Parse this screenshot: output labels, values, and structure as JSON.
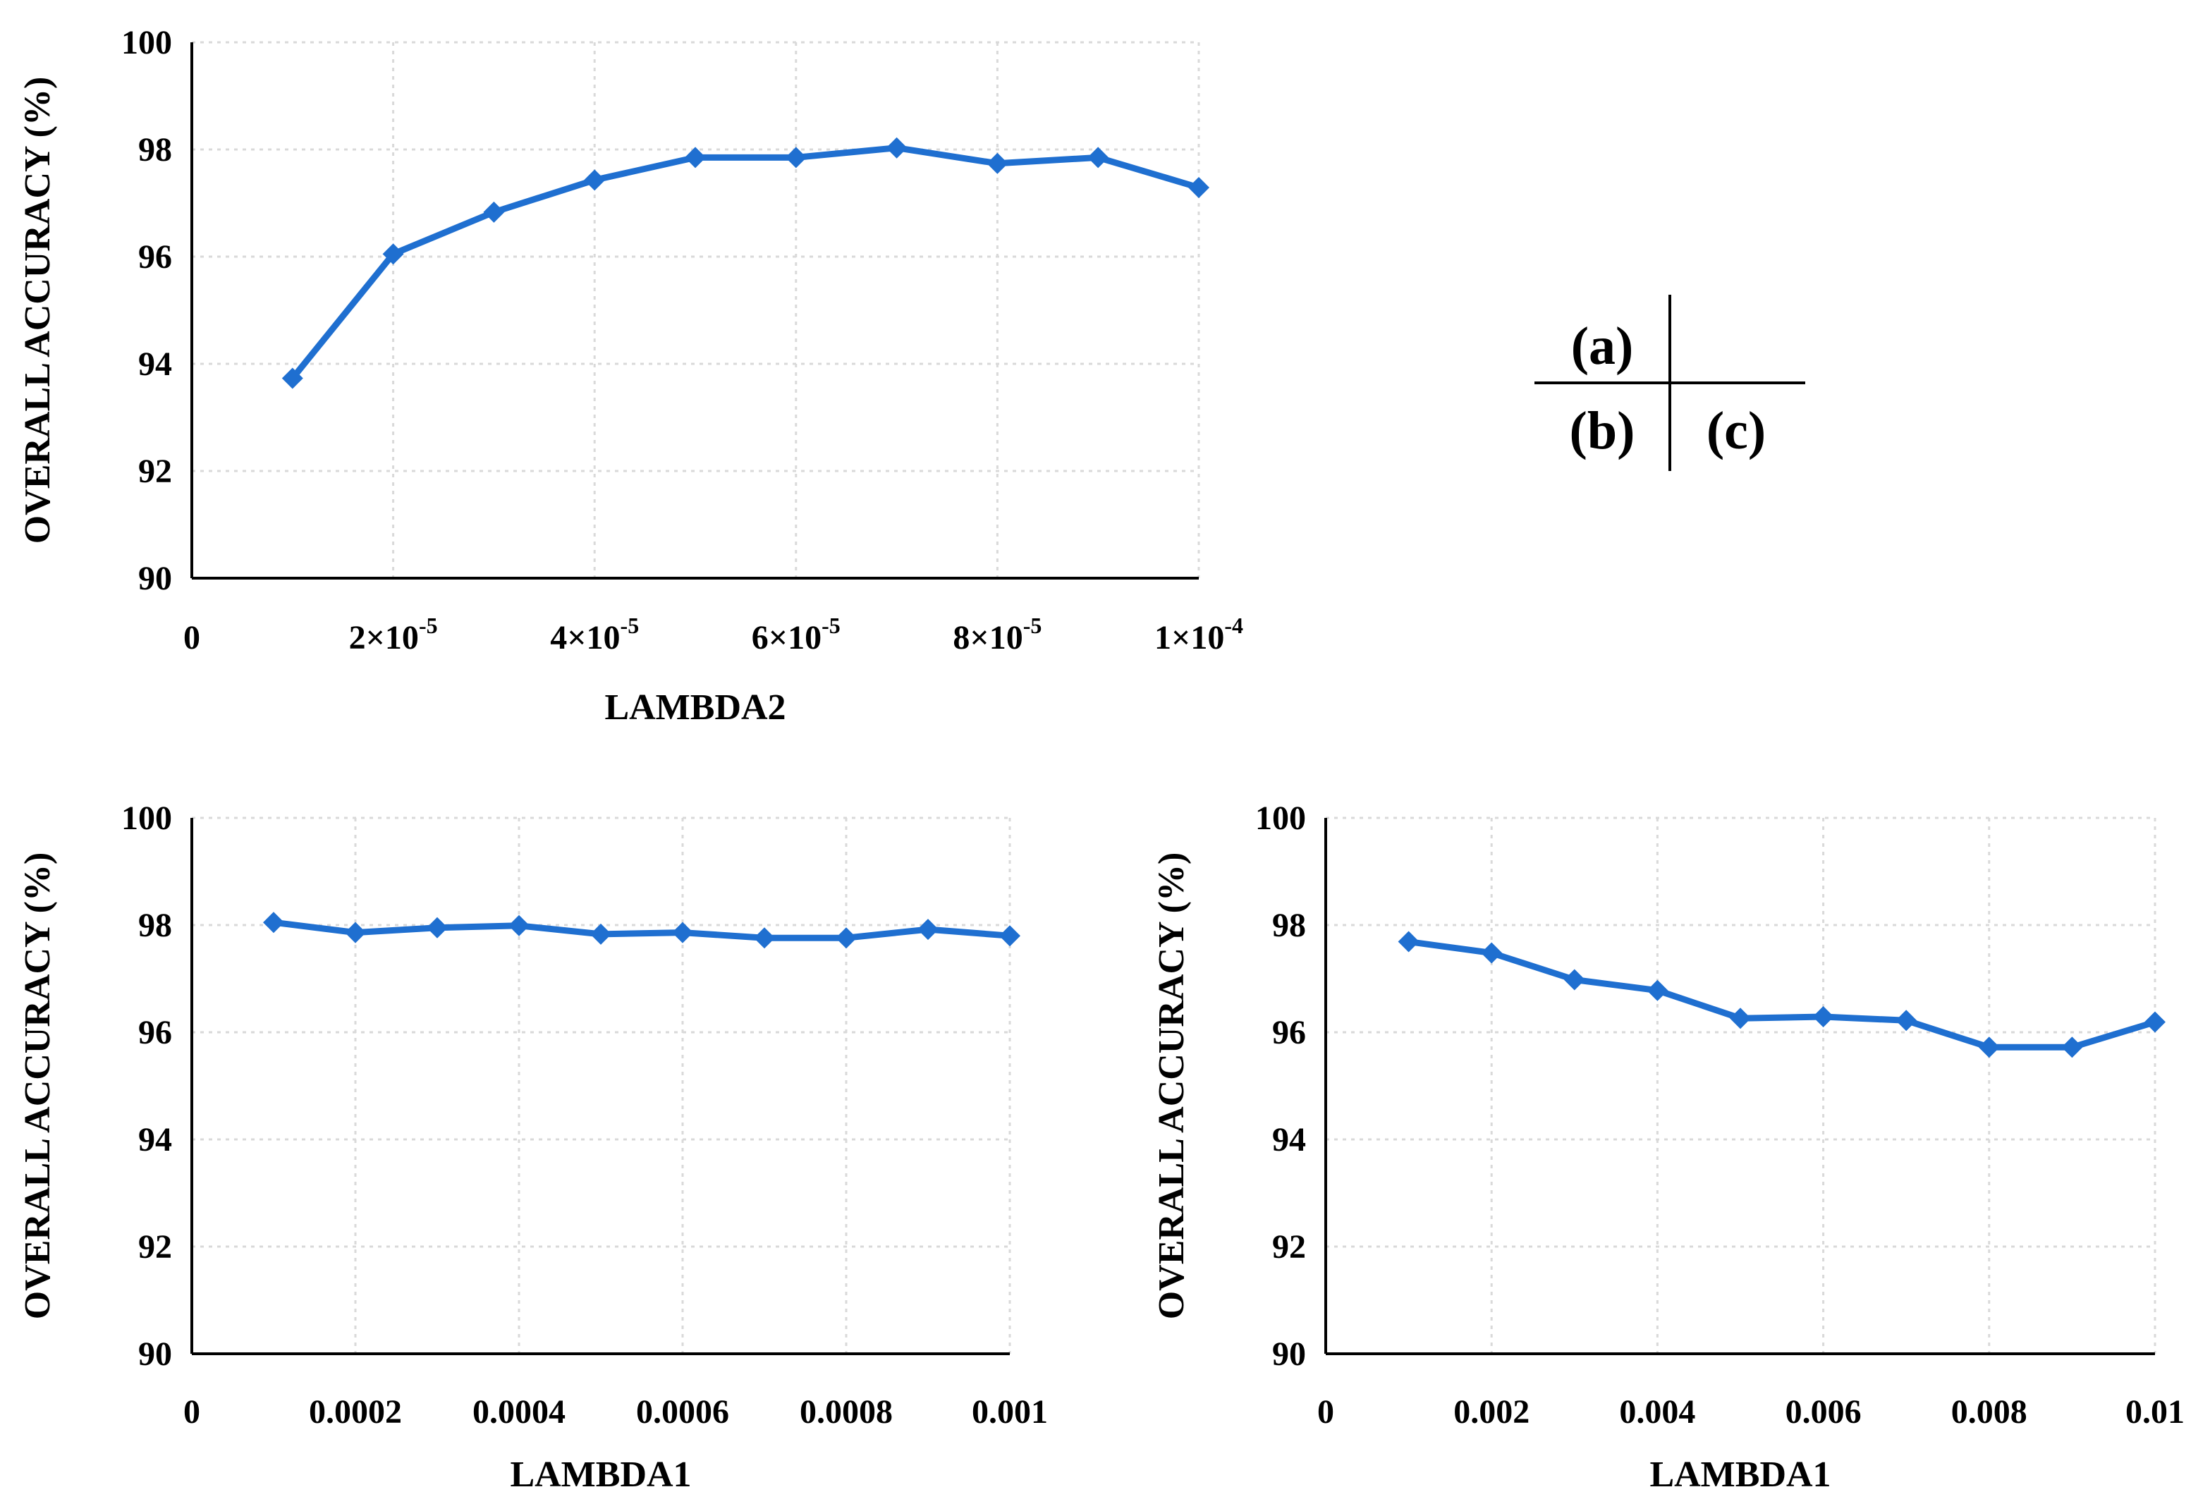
{
  "colors": {
    "series": "#1f6fd0",
    "axis": "#000000",
    "grid": "#d9d9d9"
  },
  "panel_key": {
    "a": "(a)",
    "b": "(b)",
    "c": "(c)"
  },
  "chart_data": [
    {
      "id": "a",
      "type": "line",
      "xlabel": "LAMBDA2",
      "ylabel": "OVERALL ACCURACY (%)",
      "xlim": [
        0,
        0.0001
      ],
      "ylim": [
        90,
        100
      ],
      "x_ticks": [
        {
          "value": 0,
          "base": "0",
          "exp": ""
        },
        {
          "value": 2e-05,
          "base": "2×10",
          "exp": "-5"
        },
        {
          "value": 4e-05,
          "base": "4×10",
          "exp": "-5"
        },
        {
          "value": 6e-05,
          "base": "6×10",
          "exp": "-5"
        },
        {
          "value": 8e-05,
          "base": "8×10",
          "exp": "-5"
        },
        {
          "value": 0.0001,
          "base": "1×10",
          "exp": "-4"
        }
      ],
      "y_ticks": [
        {
          "value": 90,
          "label": "90"
        },
        {
          "value": 92,
          "label": "92"
        },
        {
          "value": 94,
          "label": "94"
        },
        {
          "value": 96,
          "label": "96"
        },
        {
          "value": 98,
          "label": "98"
        },
        {
          "value": 100,
          "label": "100"
        }
      ],
      "series": [
        {
          "name": "overall accuracy",
          "x": [
            1e-05,
            2e-05,
            3e-05,
            4e-05,
            5e-05,
            6e-05,
            7e-05,
            8e-05,
            9e-05,
            0.0001
          ],
          "y": [
            93.73,
            96.05,
            96.83,
            97.43,
            97.85,
            97.85,
            98.03,
            97.74,
            97.85,
            97.29
          ]
        }
      ]
    },
    {
      "id": "b",
      "type": "line",
      "xlabel": "LAMBDA1",
      "ylabel": "OVERALL ACCURACY (%)",
      "xlim": [
        0,
        0.001
      ],
      "ylim": [
        90,
        100
      ],
      "x_ticks": [
        {
          "value": 0,
          "base": "0",
          "exp": ""
        },
        {
          "value": 0.0002,
          "base": "0.0002",
          "exp": ""
        },
        {
          "value": 0.0004,
          "base": "0.0004",
          "exp": ""
        },
        {
          "value": 0.0006,
          "base": "0.0006",
          "exp": ""
        },
        {
          "value": 0.0008,
          "base": "0.0008",
          "exp": ""
        },
        {
          "value": 0.001,
          "base": "0.001",
          "exp": ""
        }
      ],
      "y_ticks": [
        {
          "value": 90,
          "label": "90"
        },
        {
          "value": 92,
          "label": "92"
        },
        {
          "value": 94,
          "label": "94"
        },
        {
          "value": 96,
          "label": "96"
        },
        {
          "value": 98,
          "label": "98"
        },
        {
          "value": 100,
          "label": "100"
        }
      ],
      "series": [
        {
          "name": "overall accuracy",
          "x": [
            0.0001,
            0.0002,
            0.0003,
            0.0004,
            0.0005,
            0.0006,
            0.0007,
            0.0008,
            0.0009,
            0.001
          ],
          "y": [
            98.05,
            97.86,
            97.95,
            97.99,
            97.83,
            97.86,
            97.76,
            97.76,
            97.92,
            97.8
          ]
        }
      ]
    },
    {
      "id": "c",
      "type": "line",
      "xlabel": "LAMBDA1",
      "ylabel": "OVERALL ACCURACY (%)",
      "xlim": [
        0,
        0.01
      ],
      "ylim": [
        90,
        100
      ],
      "x_ticks": [
        {
          "value": 0,
          "base": "0",
          "exp": ""
        },
        {
          "value": 0.002,
          "base": "0.002",
          "exp": ""
        },
        {
          "value": 0.004,
          "base": "0.004",
          "exp": ""
        },
        {
          "value": 0.006,
          "base": "0.006",
          "exp": ""
        },
        {
          "value": 0.008,
          "base": "0.008",
          "exp": ""
        },
        {
          "value": 0.01,
          "base": "0.01",
          "exp": ""
        }
      ],
      "y_ticks": [
        {
          "value": 90,
          "label": "90"
        },
        {
          "value": 92,
          "label": "92"
        },
        {
          "value": 94,
          "label": "94"
        },
        {
          "value": 96,
          "label": "96"
        },
        {
          "value": 98,
          "label": "98"
        },
        {
          "value": 100,
          "label": "100"
        }
      ],
      "series": [
        {
          "name": "overall accuracy",
          "x": [
            0.001,
            0.002,
            0.003,
            0.004,
            0.005,
            0.006,
            0.007,
            0.008,
            0.009,
            0.01
          ],
          "y": [
            97.69,
            97.48,
            96.98,
            96.78,
            96.26,
            96.29,
            96.22,
            95.72,
            95.72,
            96.19
          ]
        }
      ]
    }
  ]
}
